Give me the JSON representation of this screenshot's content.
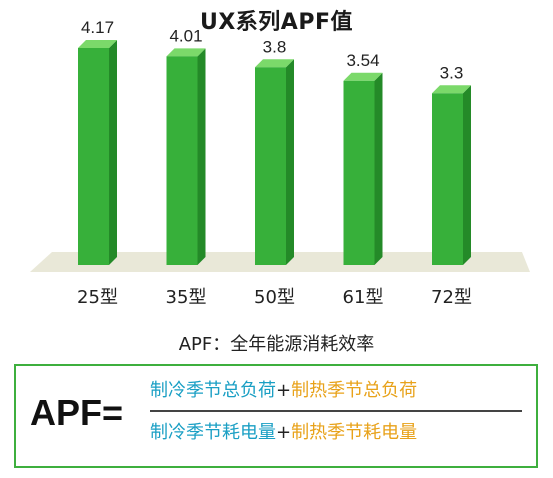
{
  "colors": {
    "bar_front": "#37b03a",
    "bar_side": "#248a28",
    "bar_top": "#7bd96a",
    "floor": "#e9e8d8",
    "cooling": "#1a9fc4",
    "heating": "#e8a21a",
    "box_border": "#3eaf3e"
  },
  "chart_data": {
    "type": "bar",
    "title": "UX系列APF值",
    "categories": [
      "25型",
      "35型",
      "50型",
      "61型",
      "72型"
    ],
    "values": [
      4.17,
      4.01,
      3.8,
      3.54,
      3.3
    ],
    "value_labels": [
      "4.17",
      "4.01",
      "3.8",
      "3.54",
      "3.3"
    ],
    "ylim": [
      0,
      4.17
    ],
    "grid": false
  },
  "definition": "APF：全年能源消耗效率",
  "formula": {
    "lhs": "APF=",
    "numerator": {
      "cooling": "制冷季节总负荷",
      "plus": "+",
      "heating": "制热季节总负荷"
    },
    "denominator": {
      "cooling": "制冷季节耗电量",
      "plus": "+",
      "heating": "制热季节耗电量"
    }
  }
}
